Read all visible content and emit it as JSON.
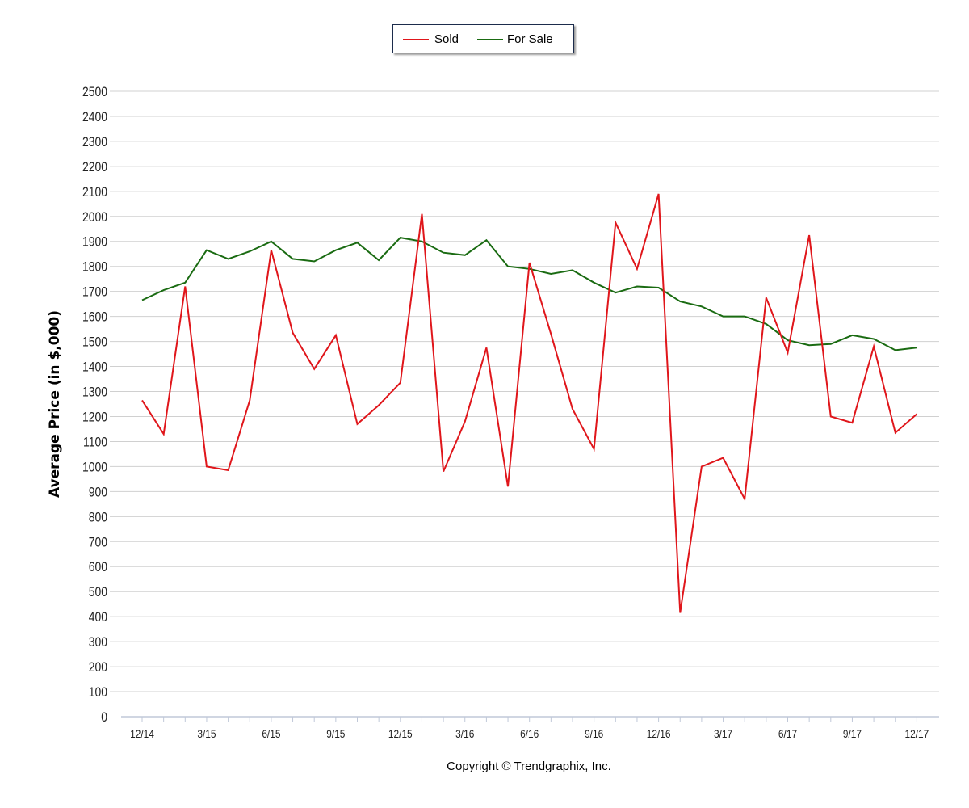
{
  "legend": {
    "items": [
      {
        "label": "Sold",
        "color": "#e0161b"
      },
      {
        "label": "For Sale",
        "color": "#1a6b12"
      }
    ]
  },
  "footer": {
    "copyright": "Copyright © Trendgraphix, Inc."
  },
  "chart_data": {
    "type": "line",
    "title": "",
    "xlabel": "",
    "ylabel": "Average Price (in $,000)",
    "ylim": [
      0,
      2500
    ],
    "yticks": [
      0,
      100,
      200,
      300,
      400,
      500,
      600,
      700,
      800,
      900,
      1000,
      1100,
      1200,
      1300,
      1400,
      1500,
      1600,
      1700,
      1800,
      1900,
      2000,
      2100,
      2200,
      2300,
      2400,
      2500
    ],
    "xtick_labels": [
      "12/14",
      "3/15",
      "6/15",
      "9/15",
      "12/15",
      "3/16",
      "6/16",
      "9/16",
      "12/16",
      "3/17",
      "6/17",
      "9/17",
      "12/17"
    ],
    "x": [
      "12/14",
      "1/15",
      "2/15",
      "3/15",
      "4/15",
      "5/15",
      "6/15",
      "7/15",
      "8/15",
      "9/15",
      "10/15",
      "11/15",
      "12/15",
      "1/16",
      "2/16",
      "3/16",
      "4/16",
      "5/16",
      "6/16",
      "7/16",
      "8/16",
      "9/16",
      "10/16",
      "11/16",
      "12/16",
      "1/17",
      "2/17",
      "3/17",
      "4/17",
      "5/17",
      "6/17",
      "7/17",
      "8/17",
      "9/17",
      "10/17",
      "11/17",
      "12/17"
    ],
    "grid": true,
    "legend_position": "top-center",
    "series": [
      {
        "name": "Sold",
        "color": "#e0161b",
        "values": [
          1265,
          1130,
          1720,
          1000,
          985,
          1265,
          1865,
          1535,
          1390,
          1525,
          1170,
          1245,
          1335,
          2010,
          980,
          1180,
          1475,
          920,
          1815,
          1530,
          1230,
          1070,
          1975,
          1790,
          2090,
          415,
          1000,
          1035,
          870,
          1675,
          1455,
          1925,
          1200,
          1175,
          1480,
          1135,
          1210
        ]
      },
      {
        "name": "For Sale",
        "color": "#1a6b12",
        "values": [
          1665,
          1705,
          1735,
          1865,
          1830,
          1860,
          1900,
          1830,
          1820,
          1865,
          1895,
          1825,
          1915,
          1900,
          1855,
          1845,
          1905,
          1800,
          1790,
          1770,
          1785,
          1735,
          1695,
          1720,
          1715,
          1660,
          1640,
          1600,
          1600,
          1570,
          1505,
          1485,
          1490,
          1525,
          1510,
          1465,
          1475
        ]
      }
    ]
  }
}
